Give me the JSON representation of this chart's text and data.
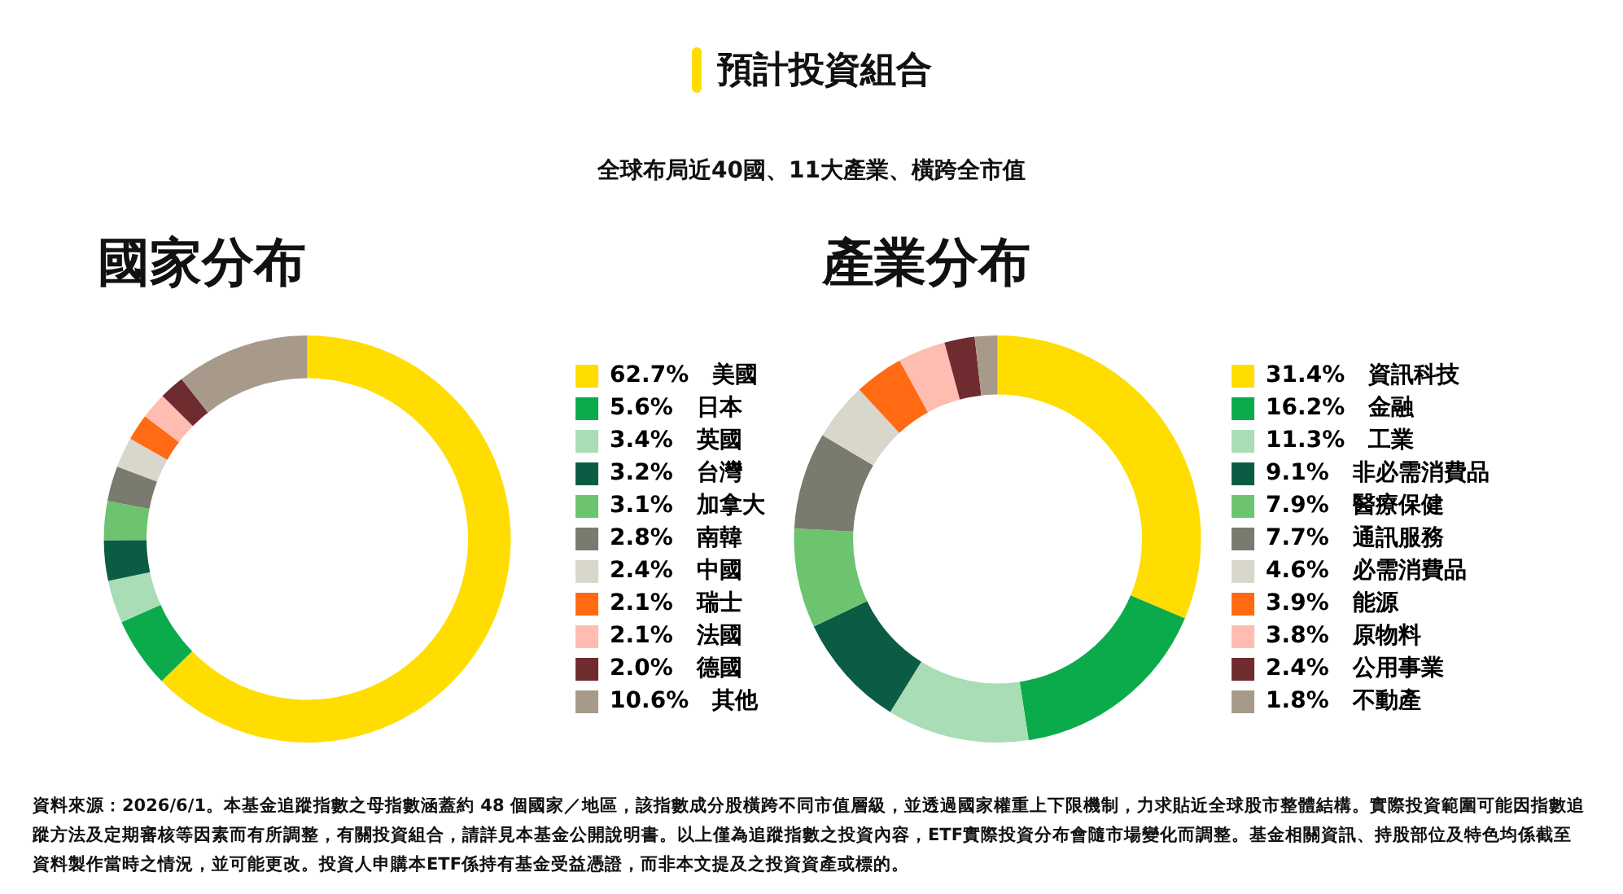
{
  "chart_data": [
    {
      "type": "other",
      "title": "預計投資組合",
      "subtitle": "全球布局近40國、11大產業、橫跨全市值",
      "annotations": [
        "資料來源：2026/6/1。本基金追蹤指數之母指數涵蓋約 48 個國家／地區，該指數成分股橫跨不同市值層級，並透過國家權重上下限機制，力求貼近全球股市整體結構。實際投資範圍可能因指數追蹤方法及定期審核等因素而有所調整，有關投資組合，請詳見本基金公開說明書。以上僅為追蹤指數之投資內容，ETF實際投資分布會隨市場變化而調整。基金相關資訊、持股部位及特色均係截至資料製作當時之情況，並可能更改。投資人申購本ETF係持有基金受益憑證，而非本文提及之投資資產或標的。"
      ]
    },
    {
      "type": "donut",
      "title": "國家分布",
      "legend": "right",
      "categories": [
        "美國",
        "日本",
        "英國",
        "台灣",
        "加拿大",
        "南韓",
        "中國",
        "瑞士",
        "法國",
        "德國",
        "其他"
      ],
      "values": [
        62.7,
        5.6,
        3.4,
        3.2,
        3.1,
        2.8,
        2.4,
        2.1,
        2.1,
        2.0,
        10.6
      ],
      "value_labels": [
        "62.7%",
        "5.6%",
        "3.4%",
        "3.2%",
        "3.1%",
        "2.8%",
        "2.4%",
        "2.1%",
        "2.1%",
        "2.0%",
        "10.6%"
      ],
      "colors": [
        "#ffdd00",
        "#0bab4b",
        "#a8ddb5",
        "#0b5c45",
        "#6cc46e",
        "#7a7a6e",
        "#d9d6cc",
        "#ff6a13",
        "#ffbcb0",
        "#6e2b30",
        "#a89a8a"
      ]
    },
    {
      "type": "donut",
      "title": "產業分布",
      "legend": "right",
      "categories": [
        "資訊科技",
        "金融",
        "工業",
        "非必需消費品",
        "醫療保健",
        "通訊服務",
        "必需消費品",
        "能源",
        "原物料",
        "公用事業",
        "不動產"
      ],
      "values": [
        31.4,
        16.2,
        11.3,
        9.1,
        7.9,
        7.7,
        4.6,
        3.9,
        3.8,
        2.4,
        1.8
      ],
      "value_labels": [
        "31.4%",
        "16.2%",
        "11.3%",
        "9.1%",
        "7.9%",
        "7.7%",
        "4.6%",
        "3.9%",
        "3.8%",
        "2.4%",
        "1.8%"
      ],
      "colors": [
        "#ffdd00",
        "#0bab4b",
        "#a8ddb5",
        "#0b5c45",
        "#6cc46e",
        "#7a7a6e",
        "#d9d6cc",
        "#ff6a13",
        "#ffbcb0",
        "#6e2b30",
        "#a89a8a"
      ]
    }
  ]
}
